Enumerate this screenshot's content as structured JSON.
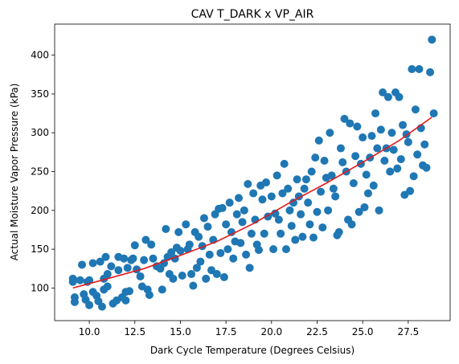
{
  "chart_data": {
    "type": "scatter",
    "title": "CAV T_DARK x VP_AIR",
    "xlabel": "Dark Cycle Temperature (Degrees Celsius)",
    "ylabel": "Actual Moisture Vapor Pressure (kPa)",
    "xlim": [
      8.1,
      29.8
    ],
    "ylim": [
      58,
      440
    ],
    "xticks": [
      10.0,
      12.5,
      15.0,
      17.5,
      20.0,
      22.5,
      25.0,
      27.5
    ],
    "xtick_labels": [
      "10.0",
      "12.5",
      "15.0",
      "17.5",
      "20.0",
      "22.5",
      "25.0",
      "27.5"
    ],
    "yticks": [
      100,
      150,
      200,
      250,
      300,
      350,
      400
    ],
    "ytick_labels": [
      "100",
      "150",
      "200",
      "250",
      "300",
      "350",
      "400"
    ],
    "grid": false,
    "colors": {
      "points": "#1f77b4",
      "fit": "#e41a1c"
    },
    "series": [
      {
        "type": "scatter",
        "points": [
          [
            9.1,
            112
          ],
          [
            9.1,
            108
          ],
          [
            9.2,
            88
          ],
          [
            9.2,
            82
          ],
          [
            9.5,
            110
          ],
          [
            9.6,
            130
          ],
          [
            9.7,
            92
          ],
          [
            9.8,
            85
          ],
          [
            9.9,
            108
          ],
          [
            10.0,
            110
          ],
          [
            10.0,
            78
          ],
          [
            10.2,
            95
          ],
          [
            10.2,
            132
          ],
          [
            10.4,
            90
          ],
          [
            10.5,
            83
          ],
          [
            10.6,
            134
          ],
          [
            10.7,
            76
          ],
          [
            10.8,
            98
          ],
          [
            10.8,
            112
          ],
          [
            10.9,
            140
          ],
          [
            11.0,
            102
          ],
          [
            11.0,
            118
          ],
          [
            11.2,
            128
          ],
          [
            11.3,
            80
          ],
          [
            11.5,
            84
          ],
          [
            11.6,
            140
          ],
          [
            11.6,
            123
          ],
          [
            11.8,
            88
          ],
          [
            11.9,
            138
          ],
          [
            12.0,
            95
          ],
          [
            12.0,
            84
          ],
          [
            12.1,
            126
          ],
          [
            12.2,
            96
          ],
          [
            12.3,
            136
          ],
          [
            12.4,
            138
          ],
          [
            12.5,
            155
          ],
          [
            12.6,
            124
          ],
          [
            12.8,
            115
          ],
          [
            12.9,
            102
          ],
          [
            13.0,
            136
          ],
          [
            13.1,
            162
          ],
          [
            13.2,
            98
          ],
          [
            13.3,
            91
          ],
          [
            13.4,
            156
          ],
          [
            13.5,
            138
          ],
          [
            13.7,
            128
          ],
          [
            13.9,
            125
          ],
          [
            14.0,
            98
          ],
          [
            14.1,
            132
          ],
          [
            14.2,
            176
          ],
          [
            14.3,
            140
          ],
          [
            14.4,
            118
          ],
          [
            14.5,
            146
          ],
          [
            14.6,
            112
          ],
          [
            14.7,
            138
          ],
          [
            14.8,
            152
          ],
          [
            14.9,
            172
          ],
          [
            15.0,
            148
          ],
          [
            15.1,
            116
          ],
          [
            15.3,
            182
          ],
          [
            15.4,
            150
          ],
          [
            15.5,
            156
          ],
          [
            15.6,
            118
          ],
          [
            15.7,
            103
          ],
          [
            15.8,
            172
          ],
          [
            15.9,
            126
          ],
          [
            16.0,
            166
          ],
          [
            16.1,
            134
          ],
          [
            16.2,
            154
          ],
          [
            16.3,
            190
          ],
          [
            16.4,
            112
          ],
          [
            16.5,
            179
          ],
          [
            16.6,
            143
          ],
          [
            16.7,
            123
          ],
          [
            16.8,
            162
          ],
          [
            16.9,
            195
          ],
          [
            17.0,
            118
          ],
          [
            17.1,
            202
          ],
          [
            17.2,
            145
          ],
          [
            17.3,
            203
          ],
          [
            17.4,
            114
          ],
          [
            17.5,
            182
          ],
          [
            17.6,
            150
          ],
          [
            17.7,
            210
          ],
          [
            17.8,
            172
          ],
          [
            17.9,
            138
          ],
          [
            18.0,
            160
          ],
          [
            18.1,
            195
          ],
          [
            18.2,
            216
          ],
          [
            18.3,
            158
          ],
          [
            18.4,
            185
          ],
          [
            18.5,
            200
          ],
          [
            18.6,
            143
          ],
          [
            18.7,
            234
          ],
          [
            18.8,
            126
          ],
          [
            18.9,
            170
          ],
          [
            19.0,
            222
          ],
          [
            19.1,
            188
          ],
          [
            19.2,
            156
          ],
          [
            19.3,
            149
          ],
          [
            19.4,
            232
          ],
          [
            19.5,
            214
          ],
          [
            19.6,
            170
          ],
          [
            19.7,
            236
          ],
          [
            19.8,
            192
          ],
          [
            20.0,
            218
          ],
          [
            20.1,
            150
          ],
          [
            20.2,
            196
          ],
          [
            20.3,
            245
          ],
          [
            20.4,
            188
          ],
          [
            20.5,
            170
          ],
          [
            20.6,
            222
          ],
          [
            20.7,
            260
          ],
          [
            20.8,
            150
          ],
          [
            20.9,
            228
          ],
          [
            21.0,
            200
          ],
          [
            21.1,
            180
          ],
          [
            21.2,
            210
          ],
          [
            21.3,
            162
          ],
          [
            21.4,
            240
          ],
          [
            21.5,
            218
          ],
          [
            21.6,
            195
          ],
          [
            21.7,
            166
          ],
          [
            21.8,
            228
          ],
          [
            21.9,
            240
          ],
          [
            22.0,
            210
          ],
          [
            22.1,
            182
          ],
          [
            22.2,
            250
          ],
          [
            22.3,
            165
          ],
          [
            22.4,
            268
          ],
          [
            22.5,
            198
          ],
          [
            22.6,
            290
          ],
          [
            22.7,
            224
          ],
          [
            22.8,
            178
          ],
          [
            22.9,
            264
          ],
          [
            23.0,
            242
          ],
          [
            23.1,
            200
          ],
          [
            23.2,
            300
          ],
          [
            23.3,
            245
          ],
          [
            23.4,
            228
          ],
          [
            23.5,
            218
          ],
          [
            23.6,
            168
          ],
          [
            23.7,
            172
          ],
          [
            23.8,
            280
          ],
          [
            23.9,
            262
          ],
          [
            24.0,
            318
          ],
          [
            24.1,
            250
          ],
          [
            24.2,
            188
          ],
          [
            24.3,
            312
          ],
          [
            24.4,
            182
          ],
          [
            24.5,
            235
          ],
          [
            24.6,
            270
          ],
          [
            24.7,
            308
          ],
          [
            24.8,
            198
          ],
          [
            24.9,
            260
          ],
          [
            25.0,
            294
          ],
          [
            25.1,
            204
          ],
          [
            25.2,
            246
          ],
          [
            25.3,
            222
          ],
          [
            25.4,
            268
          ],
          [
            25.5,
            296
          ],
          [
            25.6,
            232
          ],
          [
            25.7,
            325
          ],
          [
            25.8,
            280
          ],
          [
            25.9,
            200
          ],
          [
            26.0,
            304
          ],
          [
            26.1,
            352
          ],
          [
            26.2,
            264
          ],
          [
            26.3,
            280
          ],
          [
            26.4,
            346
          ],
          [
            26.5,
            250
          ],
          [
            26.6,
            300
          ],
          [
            26.7,
            278
          ],
          [
            26.8,
            352
          ],
          [
            26.9,
            254
          ],
          [
            27.0,
            346
          ],
          [
            27.1,
            266
          ],
          [
            27.2,
            310
          ],
          [
            27.3,
            220
          ],
          [
            27.4,
            298
          ],
          [
            27.5,
            288
          ],
          [
            27.6,
            225
          ],
          [
            27.7,
            382
          ],
          [
            27.8,
            244
          ],
          [
            27.9,
            330
          ],
          [
            28.0,
            272
          ],
          [
            28.1,
            382
          ],
          [
            28.2,
            306
          ],
          [
            28.3,
            258
          ],
          [
            28.4,
            285
          ],
          [
            28.5,
            255
          ],
          [
            28.7,
            378
          ],
          [
            28.8,
            420
          ],
          [
            28.9,
            325
          ]
        ]
      },
      {
        "type": "line",
        "points": [
          [
            9.1,
            100
          ],
          [
            11.0,
            112
          ],
          [
            13.0,
            125
          ],
          [
            15.0,
            142
          ],
          [
            17.0,
            160
          ],
          [
            19.0,
            183
          ],
          [
            21.0,
            210
          ],
          [
            23.0,
            235
          ],
          [
            25.0,
            262
          ],
          [
            27.0,
            290
          ],
          [
            28.8,
            320
          ]
        ]
      }
    ]
  }
}
